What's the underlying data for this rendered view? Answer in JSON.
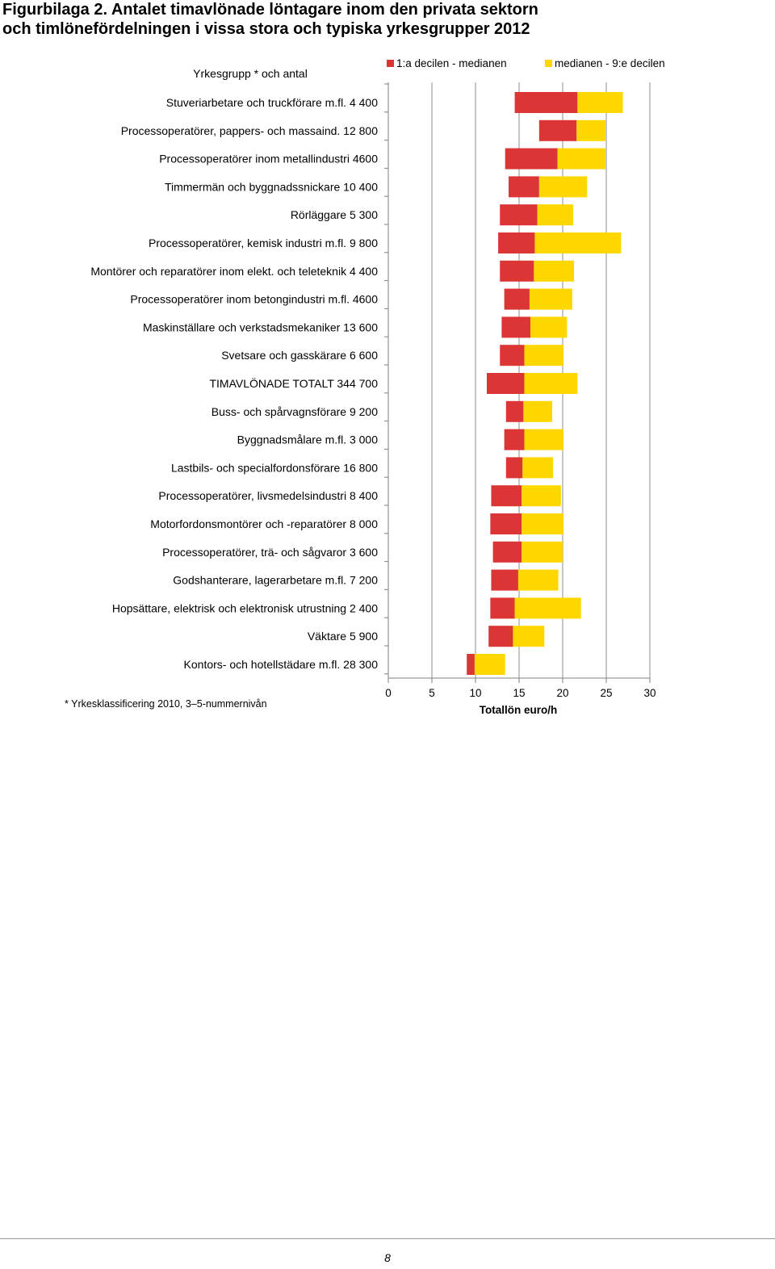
{
  "heading": {
    "line1": "Figurbilaga 2. Antalet timavlönade löntagare inom den privata sektorn",
    "line2": "och timlönefördelningen i vissa stora och typiska yrkesgrupper 2012"
  },
  "chart_data": {
    "type": "bar",
    "stacked": true,
    "orientation": "horizontal",
    "category_header": "Yrkesgrupp * och  antal",
    "xlabel": "Totallön euro/h",
    "xlim": [
      0,
      30
    ],
    "xticks": [
      0,
      5,
      10,
      15,
      20,
      25,
      30
    ],
    "grid": "vertical",
    "legend_position": "top",
    "footnote": "* Yrkesklassificering 2010, 3–5-nummernivån",
    "colors": {
      "low": "#dc3535",
      "high": "#ffd700",
      "grid": "#b3b3b3",
      "axis": "#7f7f7f"
    },
    "series": [
      {
        "name": "1:a decilen - medianen",
        "key": "low"
      },
      {
        "name": "medianen - 9:e decilen",
        "key": "high"
      }
    ],
    "categories": [
      "Stuveriarbetare och truckförare m.fl.  4 400",
      "Processoperatörer, pappers- och massaind. 12 800",
      "Processoperatörer inom metallindustri  4600",
      "Timmermän och byggnadssnickare 10 400",
      "Rörläggare 5 300",
      "Processoperatörer, kemisk industri m.fl.  9 800",
      "Montörer och reparatörer inom elekt. och teleteknik 4 400",
      "Processoperatörer inom betongindustri m.fl.  4600",
      "Maskinställare och verkstadsmekaniker 13 600",
      "Svetsare och gasskärare 6 600",
      "TIMAVLÖNADE TOTALT  344 700",
      "Buss- och spårvagnsförare 9 200",
      "Byggnadsmålare m.fl. 3 000",
      "Lastbils- och specialfordonsförare 16 800",
      "Processoperatörer, livsmedelsindustri  8  400",
      "Motorfordonsmontörer och -reparatörer 8 000",
      "Processoperatörer, trä- och sågvaror 3 600",
      "Godshanterare, lagerarbetare m.fl. 7 200",
      "Hopsättare, elektrisk och elektronisk utrustning   2 400",
      "Väktare 5 900",
      "Kontors- och hotellstädare m.fl. 28 300"
    ],
    "decile_1": [
      14.5,
      17.3,
      13.4,
      13.8,
      12.8,
      12.6,
      12.8,
      13.3,
      13.0,
      12.8,
      11.3,
      13.5,
      13.3,
      13.5,
      11.8,
      11.7,
      12.0,
      11.8,
      11.7,
      11.5,
      9.0
    ],
    "median": [
      21.7,
      21.6,
      19.4,
      17.3,
      17.1,
      16.8,
      16.7,
      16.2,
      16.3,
      15.6,
      15.6,
      15.5,
      15.6,
      15.4,
      15.3,
      15.3,
      15.3,
      14.9,
      14.5,
      14.3,
      9.9
    ],
    "decile_9": [
      26.9,
      24.9,
      24.9,
      22.8,
      21.2,
      26.7,
      21.3,
      21.1,
      20.5,
      20.1,
      21.7,
      18.8,
      20.1,
      18.9,
      19.8,
      20.1,
      20.0,
      19.5,
      22.1,
      17.9,
      13.4
    ]
  },
  "page_number": "8"
}
